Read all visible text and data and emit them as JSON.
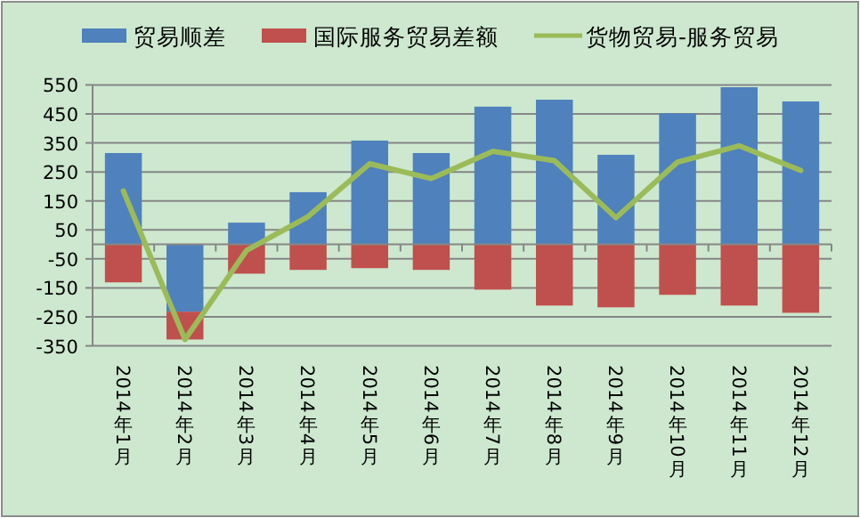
{
  "chart_data": {
    "type": "bar",
    "stacked": true,
    "categories": [
      "2014年1月",
      "2014年2月",
      "2014年3月",
      "2014年4月",
      "2014年5月",
      "2014年6月",
      "2014年7月",
      "2014年8月",
      "2014年9月",
      "2014年10月",
      "2014年11月",
      "2014年12月"
    ],
    "series": [
      {
        "name": "贸易顺差",
        "color": "#4f81bd",
        "values": [
          315,
          -232,
          75,
          180,
          358,
          315,
          475,
          499,
          309,
          452,
          542,
          493
        ]
      },
      {
        "name": "国际服务贸易差额",
        "color": "#c0504d",
        "values": [
          -131,
          -96,
          -101,
          -88,
          -82,
          -88,
          -156,
          -211,
          -217,
          -174,
          -211,
          -236
        ]
      },
      {
        "name": "货物贸易-服务贸易",
        "color": "#9bbb59",
        "type": "line",
        "values": [
          184,
          -328,
          -21,
          96,
          278,
          227,
          321,
          289,
          92,
          284,
          340,
          255
        ]
      }
    ],
    "ylim": [
      -350,
      550
    ],
    "yticks": [
      550,
      450,
      350,
      250,
      150,
      50,
      -50,
      -150,
      -250,
      -350
    ],
    "grid": "y",
    "legend": "top",
    "marker": "none",
    "line_style": "solid"
  }
}
